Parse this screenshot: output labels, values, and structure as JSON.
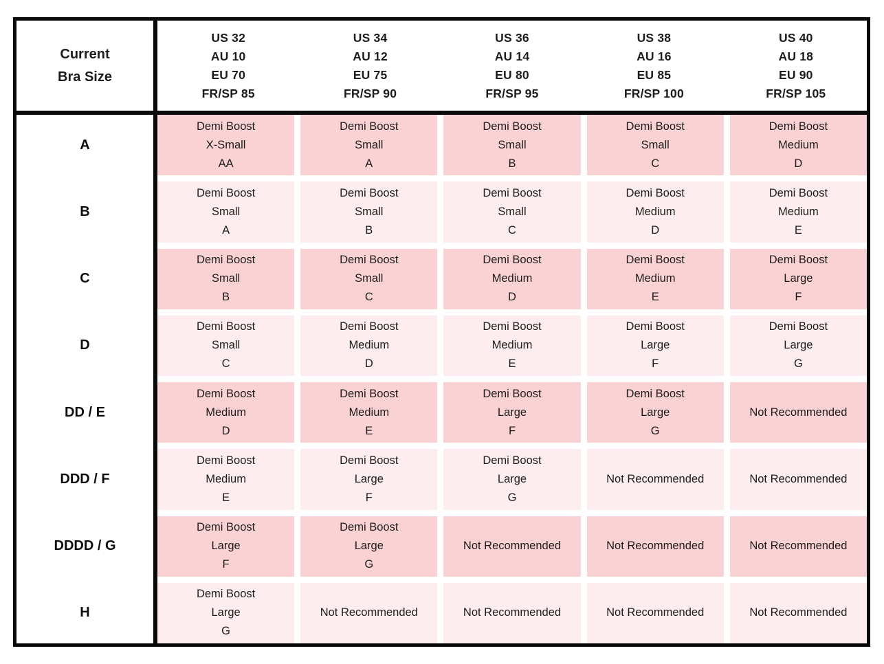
{
  "chart_data": {
    "type": "table",
    "corner_header": [
      "Current",
      "Bra Size"
    ],
    "column_headers": [
      [
        "US 32",
        "AU 10",
        "EU 70",
        "FR/SP 85"
      ],
      [
        "US 34",
        "AU 12",
        "EU 75",
        "FR/SP 90"
      ],
      [
        "US 36",
        "AU 14",
        "EU 80",
        "FR/SP 95"
      ],
      [
        "US 38",
        "AU 16",
        "EU 85",
        "FR/SP 100"
      ],
      [
        "US 40",
        "AU 18",
        "EU 90",
        "FR/SP 105"
      ]
    ],
    "row_headers": [
      "A",
      "B",
      "C",
      "D",
      "DD / E",
      "DDD / F",
      "DDDD / G",
      "H"
    ],
    "rows": [
      [
        [
          "Demi Boost",
          "X-Small",
          "AA"
        ],
        [
          "Demi Boost",
          "Small",
          "A"
        ],
        [
          "Demi Boost",
          "Small",
          "B"
        ],
        [
          "Demi Boost",
          "Small",
          "C"
        ],
        [
          "Demi Boost",
          "Medium",
          "D"
        ]
      ],
      [
        [
          "Demi Boost",
          "Small",
          "A"
        ],
        [
          "Demi Boost",
          "Small",
          "B"
        ],
        [
          "Demi Boost",
          "Small",
          "C"
        ],
        [
          "Demi Boost",
          "Medium",
          "D"
        ],
        [
          "Demi Boost",
          "Medium",
          "E"
        ]
      ],
      [
        [
          "Demi Boost",
          "Small",
          "B"
        ],
        [
          "Demi Boost",
          "Small",
          "C"
        ],
        [
          "Demi Boost",
          "Medium",
          "D"
        ],
        [
          "Demi Boost",
          "Medium",
          "E"
        ],
        [
          "Demi Boost",
          "Large",
          "F"
        ]
      ],
      [
        [
          "Demi Boost",
          "Small",
          "C"
        ],
        [
          "Demi Boost",
          "Medium",
          "D"
        ],
        [
          "Demi Boost",
          "Medium",
          "E"
        ],
        [
          "Demi Boost",
          "Large",
          "F"
        ],
        [
          "Demi Boost",
          "Large",
          "G"
        ]
      ],
      [
        [
          "Demi Boost",
          "Medium",
          "D"
        ],
        [
          "Demi Boost",
          "Medium",
          "E"
        ],
        [
          "Demi Boost",
          "Large",
          "F"
        ],
        [
          "Demi Boost",
          "Large",
          "G"
        ],
        [
          "Not Recommended"
        ]
      ],
      [
        [
          "Demi Boost",
          "Medium",
          "E"
        ],
        [
          "Demi Boost",
          "Large",
          "F"
        ],
        [
          "Demi Boost",
          "Large",
          "G"
        ],
        [
          "Not Recommended"
        ],
        [
          "Not Recommended"
        ]
      ],
      [
        [
          "Demi Boost",
          "Large",
          "F"
        ],
        [
          "Demi Boost",
          "Large",
          "G"
        ],
        [
          "Not Recommended"
        ],
        [
          "Not Recommended"
        ],
        [
          "Not Recommended"
        ]
      ],
      [
        [
          "Demi Boost",
          "Large",
          "G"
        ],
        [
          "Not Recommended"
        ],
        [
          "Not Recommended"
        ],
        [
          "Not Recommended"
        ],
        [
          "Not Recommended"
        ]
      ]
    ],
    "legend_note_highlight_rows": [
      "A",
      "C",
      "DD / E",
      "DDDD / G"
    ]
  },
  "colors": {
    "row-dark": "#fbd2d4",
    "row-light": "#fdedee",
    "border": "#0a0a0a",
    "text": "#1c1c1c"
  }
}
